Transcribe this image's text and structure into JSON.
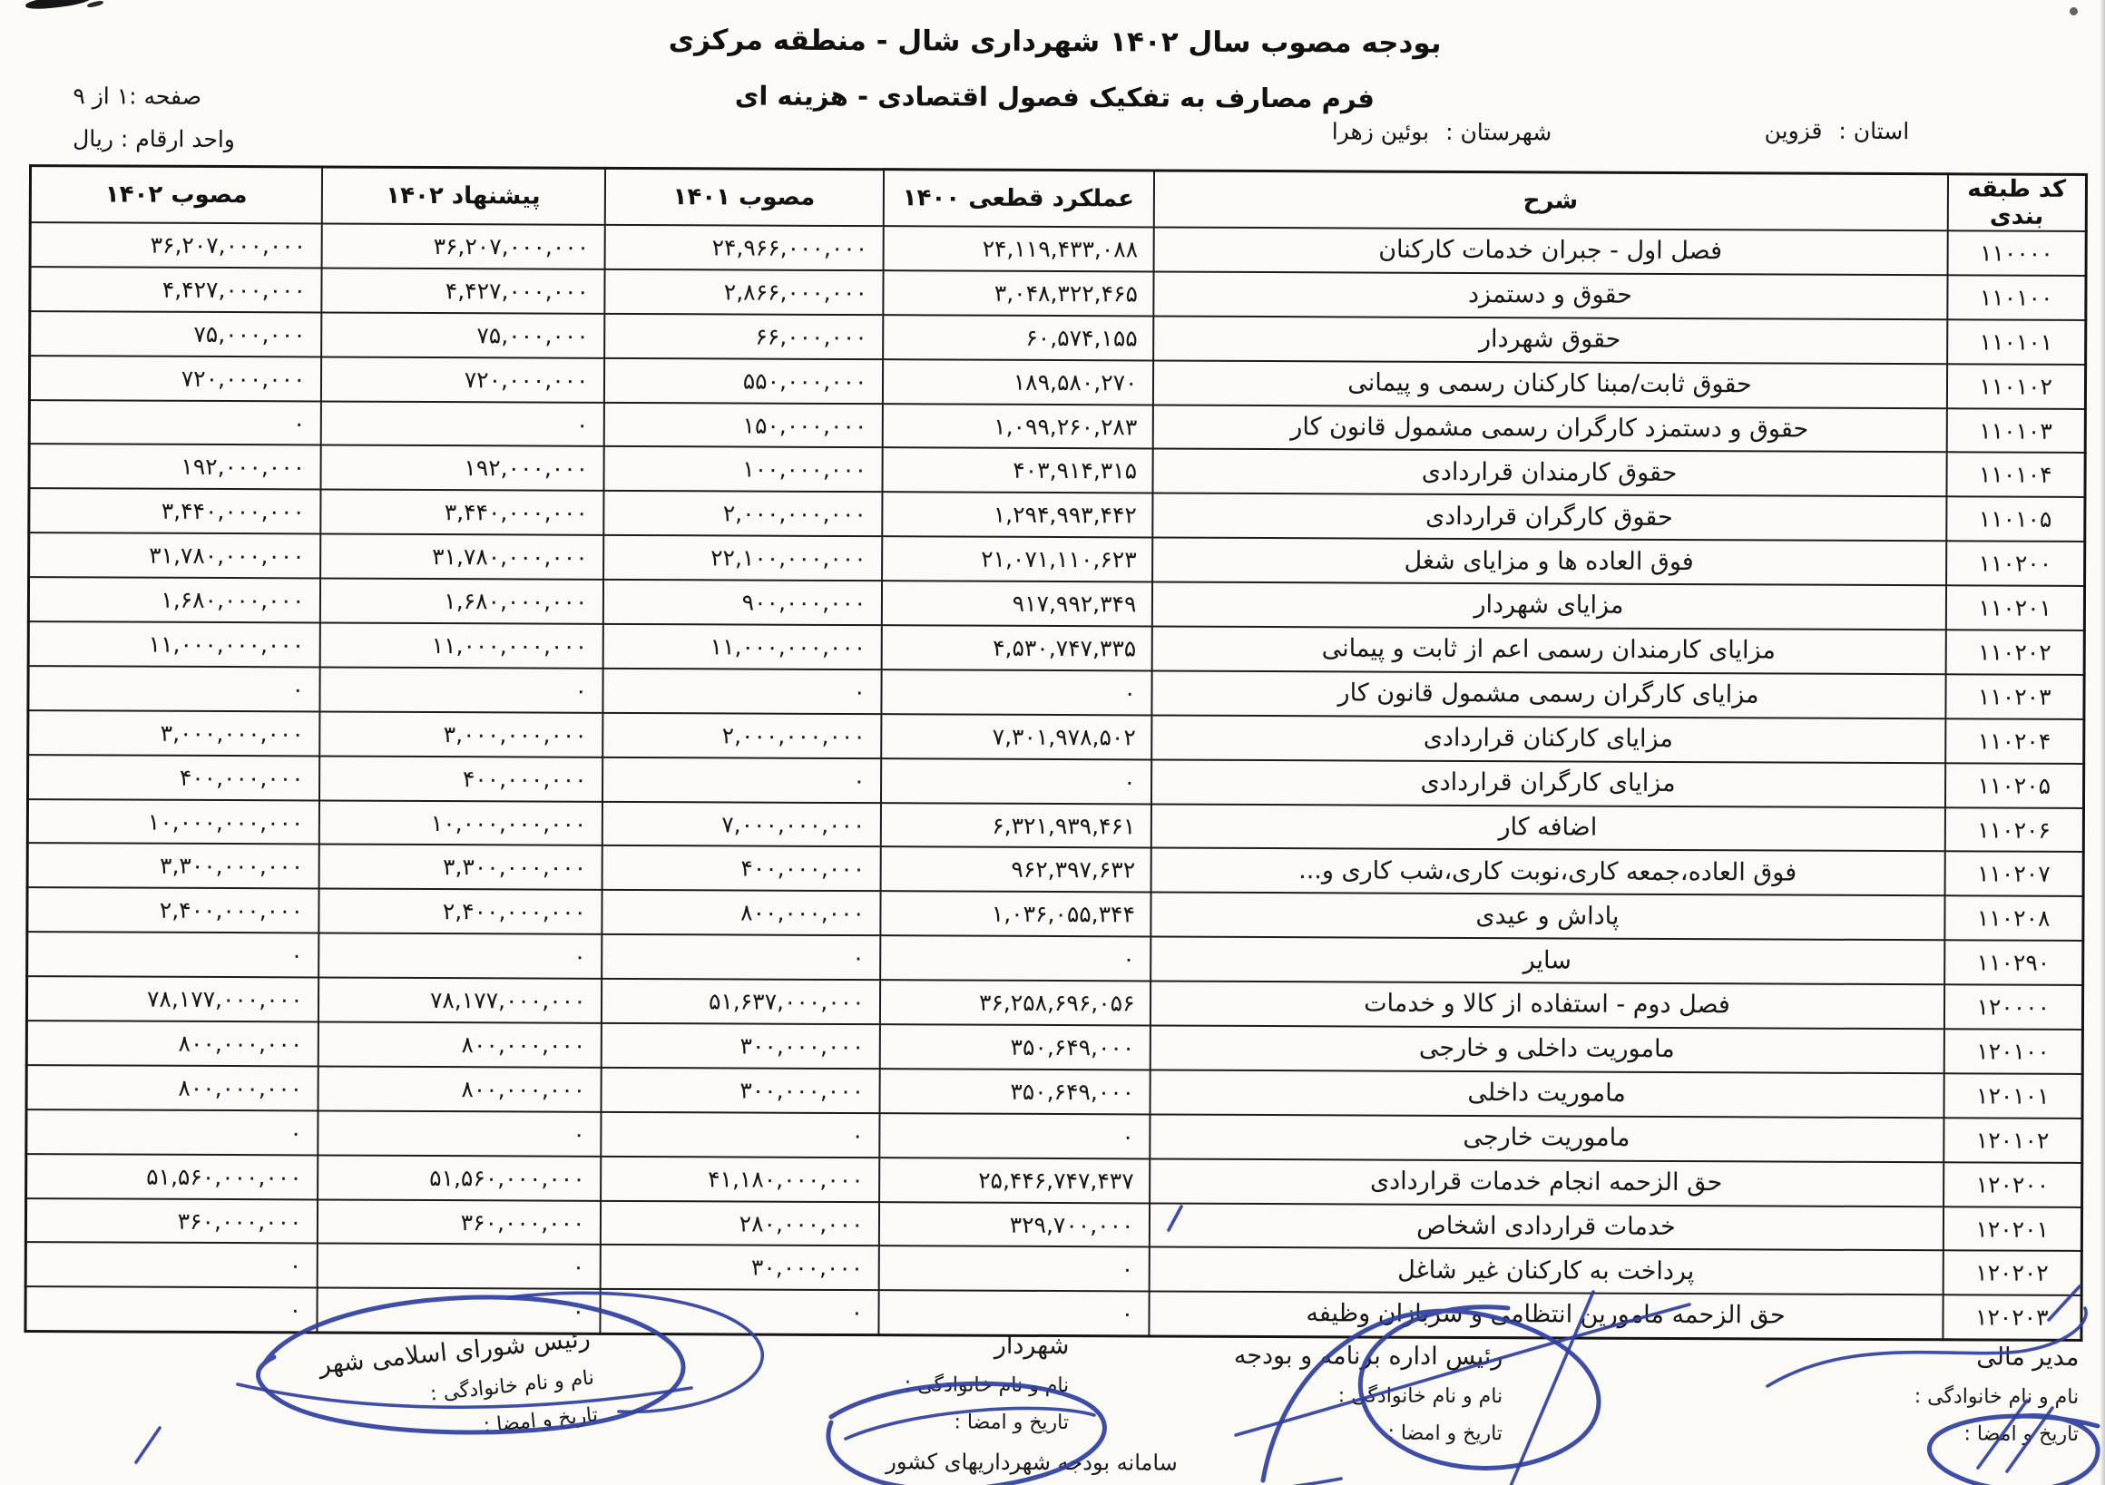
{
  "header": {
    "title_line1": "بودجه مصوب سال ۱۴۰۲ شهرداری شال - منطقه مرکزی",
    "title_line2": "فرم مصارف به تفکیک فصول اقتصادی  - هزینه ای",
    "page_info": "صفحه :۱ از ۹",
    "unit_info": "واحد ارقام : ریال",
    "province_label": "استان :",
    "province_value": "قزوین",
    "county_label": "شهرستان :",
    "county_value": "بوئین زهرا"
  },
  "table": {
    "headers": {
      "code": "کد طبقه بندی",
      "desc": "شرح",
      "perf_1400": "عملکرد قطعی ۱۴۰۰",
      "approved_1401": "مصوب ۱۴۰۱",
      "proposed_1402": "پیشنهاد ۱۴۰۲",
      "approved_1402": "مصوب ۱۴۰۲"
    },
    "rows": [
      {
        "code": "۱۱۰۰۰۰",
        "desc": "فصل اول - جبران خدمات کارکنان",
        "perf_1400": "۲۴,۱۱۹,۴۳۳,۰۸۸",
        "approved_1401": "۲۴,۹۶۶,۰۰۰,۰۰۰",
        "proposed_1402": "۳۶,۲۰۷,۰۰۰,۰۰۰",
        "approved_1402": "۳۶,۲۰۷,۰۰۰,۰۰۰"
      },
      {
        "code": "۱۱۰۱۰۰",
        "desc": "حقوق و دستمزد",
        "perf_1400": "۳,۰۴۸,۳۲۲,۴۶۵",
        "approved_1401": "۲,۸۶۶,۰۰۰,۰۰۰",
        "proposed_1402": "۴,۴۲۷,۰۰۰,۰۰۰",
        "approved_1402": "۴,۴۲۷,۰۰۰,۰۰۰"
      },
      {
        "code": "۱۱۰۱۰۱",
        "desc": "حقوق شهردار",
        "perf_1400": "۶۰,۵۷۴,۱۵۵",
        "approved_1401": "۶۶,۰۰۰,۰۰۰",
        "proposed_1402": "۷۵,۰۰۰,۰۰۰",
        "approved_1402": "۷۵,۰۰۰,۰۰۰"
      },
      {
        "code": "۱۱۰۱۰۲",
        "desc": "حقوق ثابت/مبنا کارکنان رسمی و پیمانی",
        "perf_1400": "۱۸۹,۵۸۰,۲۷۰",
        "approved_1401": "۵۵۰,۰۰۰,۰۰۰",
        "proposed_1402": "۷۲۰,۰۰۰,۰۰۰",
        "approved_1402": "۷۲۰,۰۰۰,۰۰۰"
      },
      {
        "code": "۱۱۰۱۰۳",
        "desc": "حقوق و دستمزد کارگران رسمی مشمول قانون کار",
        "perf_1400": "۱,۰۹۹,۲۶۰,۲۸۳",
        "approved_1401": "۱۵۰,۰۰۰,۰۰۰",
        "proposed_1402": "۰",
        "approved_1402": "۰"
      },
      {
        "code": "۱۱۰۱۰۴",
        "desc": "حقوق کارمندان قراردادی",
        "perf_1400": "۴۰۳,۹۱۴,۳۱۵",
        "approved_1401": "۱۰۰,۰۰۰,۰۰۰",
        "proposed_1402": "۱۹۲,۰۰۰,۰۰۰",
        "approved_1402": "۱۹۲,۰۰۰,۰۰۰"
      },
      {
        "code": "۱۱۰۱۰۵",
        "desc": "حقوق کارگران قراردادی",
        "perf_1400": "۱,۲۹۴,۹۹۳,۴۴۲",
        "approved_1401": "۲,۰۰۰,۰۰۰,۰۰۰",
        "proposed_1402": "۳,۴۴۰,۰۰۰,۰۰۰",
        "approved_1402": "۳,۴۴۰,۰۰۰,۰۰۰"
      },
      {
        "code": "۱۱۰۲۰۰",
        "desc": "فوق العاده ها و مزایای شغل",
        "perf_1400": "۲۱,۰۷۱,۱۱۰,۶۲۳",
        "approved_1401": "۲۲,۱۰۰,۰۰۰,۰۰۰",
        "proposed_1402": "۳۱,۷۸۰,۰۰۰,۰۰۰",
        "approved_1402": "۳۱,۷۸۰,۰۰۰,۰۰۰"
      },
      {
        "code": "۱۱۰۲۰۱",
        "desc": "مزایای شهردار",
        "perf_1400": "۹۱۷,۹۹۲,۳۴۹",
        "approved_1401": "۹۰۰,۰۰۰,۰۰۰",
        "proposed_1402": "۱,۶۸۰,۰۰۰,۰۰۰",
        "approved_1402": "۱,۶۸۰,۰۰۰,۰۰۰"
      },
      {
        "code": "۱۱۰۲۰۲",
        "desc": "مزایای کارمندان رسمی اعم از ثابت و پیمانی",
        "perf_1400": "۴,۵۳۰,۷۴۷,۳۳۵",
        "approved_1401": "۱۱,۰۰۰,۰۰۰,۰۰۰",
        "proposed_1402": "۱۱,۰۰۰,۰۰۰,۰۰۰",
        "approved_1402": "۱۱,۰۰۰,۰۰۰,۰۰۰"
      },
      {
        "code": "۱۱۰۲۰۳",
        "desc": "مزایای کارگران رسمی مشمول قانون کار",
        "perf_1400": "۰",
        "approved_1401": "۰",
        "proposed_1402": "۰",
        "approved_1402": "۰"
      },
      {
        "code": "۱۱۰۲۰۴",
        "desc": "مزایای کارکنان قراردادی",
        "perf_1400": "۷,۳۰۱,۹۷۸,۵۰۲",
        "approved_1401": "۲,۰۰۰,۰۰۰,۰۰۰",
        "proposed_1402": "۳,۰۰۰,۰۰۰,۰۰۰",
        "approved_1402": "۳,۰۰۰,۰۰۰,۰۰۰"
      },
      {
        "code": "۱۱۰۲۰۵",
        "desc": "مزایای کارگران قراردادی",
        "perf_1400": "۰",
        "approved_1401": "۰",
        "proposed_1402": "۴۰۰,۰۰۰,۰۰۰",
        "approved_1402": "۴۰۰,۰۰۰,۰۰۰"
      },
      {
        "code": "۱۱۰۲۰۶",
        "desc": "اضافه کار",
        "perf_1400": "۶,۳۲۱,۹۳۹,۴۶۱",
        "approved_1401": "۷,۰۰۰,۰۰۰,۰۰۰",
        "proposed_1402": "۱۰,۰۰۰,۰۰۰,۰۰۰",
        "approved_1402": "۱۰,۰۰۰,۰۰۰,۰۰۰"
      },
      {
        "code": "۱۱۰۲۰۷",
        "desc": "فوق العاده،جمعه کاری،نوبت کاری،شب کاری و...",
        "perf_1400": "۹۶۲,۳۹۷,۶۳۲",
        "approved_1401": "۴۰۰,۰۰۰,۰۰۰",
        "proposed_1402": "۳,۳۰۰,۰۰۰,۰۰۰",
        "approved_1402": "۳,۳۰۰,۰۰۰,۰۰۰"
      },
      {
        "code": "۱۱۰۲۰۸",
        "desc": "پاداش و عیدی",
        "perf_1400": "۱,۰۳۶,۰۵۵,۳۴۴",
        "approved_1401": "۸۰۰,۰۰۰,۰۰۰",
        "proposed_1402": "۲,۴۰۰,۰۰۰,۰۰۰",
        "approved_1402": "۲,۴۰۰,۰۰۰,۰۰۰"
      },
      {
        "code": "۱۱۰۲۹۰",
        "desc": "سایر",
        "perf_1400": "۰",
        "approved_1401": "۰",
        "proposed_1402": "۰",
        "approved_1402": "۰"
      },
      {
        "code": "۱۲۰۰۰۰",
        "desc": "فصل دوم - استفاده از کالا و خدمات",
        "perf_1400": "۳۶,۲۵۸,۶۹۶,۰۵۶",
        "approved_1401": "۵۱,۶۳۷,۰۰۰,۰۰۰",
        "proposed_1402": "۷۸,۱۷۷,۰۰۰,۰۰۰",
        "approved_1402": "۷۸,۱۷۷,۰۰۰,۰۰۰"
      },
      {
        "code": "۱۲۰۱۰۰",
        "desc": "ماموریت داخلی و خارجی",
        "perf_1400": "۳۵۰,۶۴۹,۰۰۰",
        "approved_1401": "۳۰۰,۰۰۰,۰۰۰",
        "proposed_1402": "۸۰۰,۰۰۰,۰۰۰",
        "approved_1402": "۸۰۰,۰۰۰,۰۰۰"
      },
      {
        "code": "۱۲۰۱۰۱",
        "desc": "ماموریت داخلی",
        "perf_1400": "۳۵۰,۶۴۹,۰۰۰",
        "approved_1401": "۳۰۰,۰۰۰,۰۰۰",
        "proposed_1402": "۸۰۰,۰۰۰,۰۰۰",
        "approved_1402": "۸۰۰,۰۰۰,۰۰۰"
      },
      {
        "code": "۱۲۰۱۰۲",
        "desc": "ماموریت خارجی",
        "perf_1400": "۰",
        "approved_1401": "۰",
        "proposed_1402": "۰",
        "approved_1402": "۰"
      },
      {
        "code": "۱۲۰۲۰۰",
        "desc": "حق الزحمه انجام خدمات قراردادی",
        "perf_1400": "۲۵,۴۴۶,۷۴۷,۴۳۷",
        "approved_1401": "۴۱,۱۸۰,۰۰۰,۰۰۰",
        "proposed_1402": "۵۱,۵۶۰,۰۰۰,۰۰۰",
        "approved_1402": "۵۱,۵۶۰,۰۰۰,۰۰۰"
      },
      {
        "code": "۱۲۰۲۰۱",
        "desc": "خدمات قراردادی اشخاص",
        "perf_1400": "۳۲۹,۷۰۰,۰۰۰",
        "approved_1401": "۲۸۰,۰۰۰,۰۰۰",
        "proposed_1402": "۳۶۰,۰۰۰,۰۰۰",
        "approved_1402": "۳۶۰,۰۰۰,۰۰۰"
      },
      {
        "code": "۱۲۰۲۰۲",
        "desc": "پرداخت به کارکنان غیر شاغل",
        "perf_1400": "۰",
        "approved_1401": "۳۰,۰۰۰,۰۰۰",
        "proposed_1402": "۰",
        "approved_1402": "۰"
      },
      {
        "code": "۱۲۰۲۰۳",
        "desc": "حق الزحمه مامورین انتظامی و سربازان وظیفه",
        "perf_1400": "۰",
        "approved_1401": "۰",
        "proposed_1402": "۰",
        "approved_1402": "۰"
      }
    ]
  },
  "signatures": {
    "common": {
      "name_label": "نام و نام خانوادگی :",
      "date_label": "تاریخ و امضا :"
    },
    "finance": {
      "role": "مدیر مالی"
    },
    "budget": {
      "role": "رئیس اداره برنامه و بودجه"
    },
    "mayor": {
      "role": "شهردار",
      "footer": "سامانه بودجه شهرداریهای کشور"
    },
    "council": {
      "role": "رئیس شورای اسلامی شهر"
    }
  },
  "colors": {
    "signature_ink": "#2e3f9f",
    "page_background": "#fbfaf7"
  }
}
